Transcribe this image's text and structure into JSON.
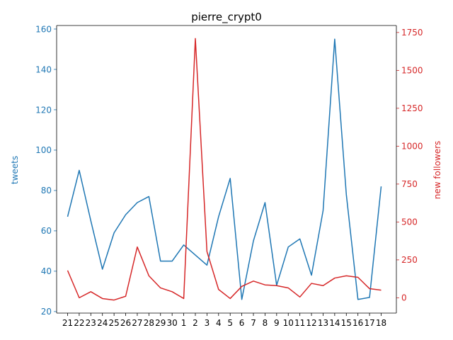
{
  "chart_data": {
    "type": "line",
    "title": "pierre_crypt0",
    "categories": [
      "21",
      "22",
      "23",
      "24",
      "25",
      "26",
      "27",
      "28",
      "29",
      "30",
      "1",
      "2",
      "3",
      "4",
      "5",
      "6",
      "7",
      "8",
      "9",
      "10",
      "11",
      "12",
      "13",
      "14",
      "15",
      "16",
      "17",
      "18"
    ],
    "series": [
      {
        "name": "tweets",
        "axis": "left",
        "color": "#1f77b4",
        "values": [
          67,
          90,
          65,
          41,
          59,
          68,
          74,
          77,
          45,
          45,
          53,
          48,
          43,
          67,
          86,
          26,
          55,
          74,
          33,
          52,
          56,
          38,
          70,
          155,
          78,
          26,
          27,
          82
        ]
      },
      {
        "name": "new followers",
        "axis": "right",
        "color": "#d62728",
        "values": [
          180,
          0,
          40,
          -5,
          -15,
          10,
          335,
          145,
          65,
          40,
          -5,
          1710,
          305,
          55,
          -5,
          75,
          110,
          85,
          80,
          65,
          5,
          95,
          80,
          130,
          145,
          135,
          60,
          50
        ]
      }
    ],
    "left_axis": {
      "label": "tweets",
      "color": "#1f77b4",
      "ylim": [
        19.25,
        161.75
      ],
      "ticks": [
        20,
        40,
        60,
        80,
        100,
        120,
        140,
        160
      ]
    },
    "right_axis": {
      "label": "new followers",
      "color": "#d62728",
      "ylim": [
        -101,
        1796
      ],
      "ticks": [
        0,
        250,
        500,
        750,
        1000,
        1250,
        1500,
        1750
      ]
    },
    "grid": false,
    "legend": "none"
  }
}
